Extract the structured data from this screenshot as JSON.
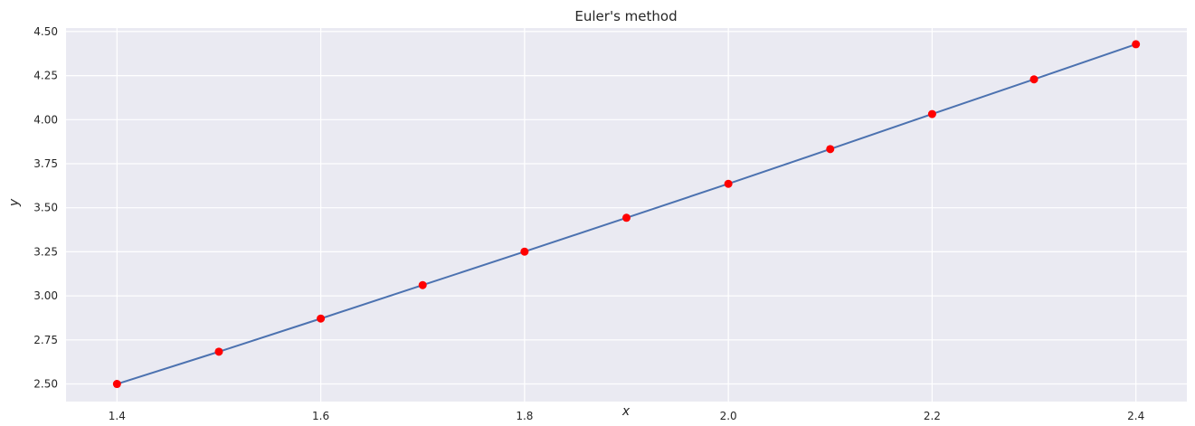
{
  "chart_data": {
    "type": "line",
    "title": "Euler's method",
    "xlabel": "x",
    "ylabel": "y",
    "xlim": [
      1.35,
      2.45
    ],
    "ylim": [
      2.4,
      4.52
    ],
    "grid": true,
    "x_ticks": [
      1.4,
      1.6,
      1.8,
      2.0,
      2.2,
      2.4
    ],
    "x_tick_labels": [
      "1.4",
      "1.6",
      "1.8",
      "2.0",
      "2.2",
      "2.4"
    ],
    "y_ticks": [
      2.5,
      2.75,
      3.0,
      3.25,
      3.5,
      3.75,
      4.0,
      4.25,
      4.5
    ],
    "y_tick_labels": [
      "2.50",
      "2.75",
      "3.00",
      "3.25",
      "3.50",
      "3.75",
      "4.00",
      "4.25",
      "4.50"
    ],
    "series": [
      {
        "x": [
          1.4,
          1.5,
          1.6,
          1.7,
          1.8,
          1.9,
          2.0,
          2.1,
          2.2,
          2.3,
          2.4
        ],
        "y": [
          2.5,
          2.683,
          2.871,
          3.061,
          3.251,
          3.443,
          3.636,
          3.833,
          4.032,
          4.229,
          4.428
        ],
        "line_color": "#4c72b0",
        "marker_color": "#ff0000"
      }
    ],
    "background_color": "#eaeaf2",
    "grid_color": "#ffffff"
  }
}
